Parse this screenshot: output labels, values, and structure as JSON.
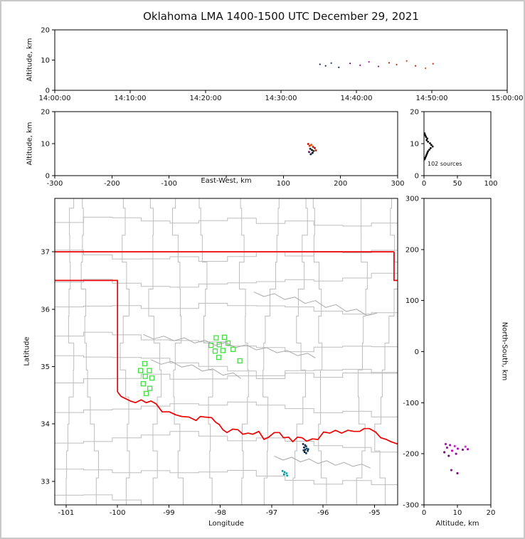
{
  "figure": {
    "title": "Oklahoma LMA 1400-1500 UTC December 29, 2021",
    "background": "#ffffff",
    "outer_border_color": "#c9c9c9",
    "frame_color": "#000000"
  },
  "chart_data": [
    {
      "id": "time_height",
      "type": "scatter",
      "ylabel": "Altitude, km",
      "xlim": [
        0,
        3600
      ],
      "ylim": [
        0,
        20
      ],
      "xticks": [
        {
          "v": 0,
          "l": "14:00:00"
        },
        {
          "v": 600,
          "l": "14:10:00"
        },
        {
          "v": 1200,
          "l": "14:20:00"
        },
        {
          "v": 1800,
          "l": "14:30:00"
        },
        {
          "v": 2400,
          "l": "14:40:00"
        },
        {
          "v": 3000,
          "l": "14:50:00"
        },
        {
          "v": 3600,
          "l": "15:00:00"
        }
      ],
      "yticks": [
        {
          "v": 0,
          "l": "0"
        },
        {
          "v": 10,
          "l": "10"
        },
        {
          "v": 20,
          "l": "20"
        }
      ],
      "marker_size": 1.1,
      "points": [
        [
          2110,
          8.6,
          "#0b2e59"
        ],
        [
          2155,
          8.1,
          "#0b2e59"
        ],
        [
          2200,
          9.0,
          "#123a6b"
        ],
        [
          2260,
          7.6,
          "#0a2547"
        ],
        [
          2350,
          8.9,
          "#5b0b6e"
        ],
        [
          2430,
          8.3,
          "#8a0f8a"
        ],
        [
          2500,
          9.4,
          "#a511a5"
        ],
        [
          2575,
          7.9,
          "#8a0f8a"
        ],
        [
          2660,
          9.1,
          "#b32410"
        ],
        [
          2720,
          8.5,
          "#c23311"
        ],
        [
          2800,
          9.7,
          "#d2400e"
        ],
        [
          2870,
          8.1,
          "#bf1d0d"
        ],
        [
          2950,
          7.3,
          "#e05a10"
        ],
        [
          3010,
          8.8,
          "#c22727"
        ]
      ]
    },
    {
      "id": "ew_height",
      "type": "scatter",
      "xlabel": "East-West, km",
      "ylabel": "Altitude, km",
      "xlim": [
        -300,
        300
      ],
      "ylim": [
        0,
        20
      ],
      "xticks": [
        {
          "v": -300,
          "l": "-300"
        },
        {
          "v": -200,
          "l": "-200"
        },
        {
          "v": -100,
          "l": "-100"
        },
        {
          "v": 0,
          "l": ""
        },
        {
          "v": 100,
          "l": "100"
        },
        {
          "v": 200,
          "l": "200"
        },
        {
          "v": 300,
          "l": "300"
        }
      ],
      "yticks": [
        {
          "v": 0,
          "l": "0"
        },
        {
          "v": 10,
          "l": "10"
        },
        {
          "v": 20,
          "l": "20"
        }
      ],
      "marker_size": 1.5,
      "points": [
        [
          143.5,
          9.9,
          "#c2200d"
        ],
        [
          146,
          9.3,
          "#d23b0e"
        ],
        [
          149,
          9.6,
          "#e0550f"
        ],
        [
          152,
          9.0,
          "#c2200d"
        ],
        [
          155,
          8.6,
          "#b01a0a"
        ],
        [
          147,
          8.4,
          "#2a2a2a"
        ],
        [
          150,
          8.0,
          "#1a1a1a"
        ],
        [
          153,
          7.7,
          "#333333"
        ],
        [
          145,
          7.4,
          "#7a0d7a"
        ],
        [
          151,
          7.1,
          "#151515"
        ],
        [
          148,
          6.7,
          "#0b2e59"
        ],
        [
          157,
          7.9,
          "#c23311"
        ]
      ]
    },
    {
      "id": "alt_histogram",
      "type": "scatter",
      "annotation": "102 sources",
      "xlim": [
        0,
        100
      ],
      "ylim": [
        0,
        20
      ],
      "xticks": [
        {
          "v": 0,
          "l": "0"
        },
        {
          "v": 50,
          "l": "50"
        },
        {
          "v": 100,
          "l": "100"
        }
      ],
      "yticks": [
        {
          "v": 0,
          "l": "0"
        },
        {
          "v": 10,
          "l": "10"
        },
        {
          "v": 20,
          "l": "20"
        }
      ],
      "color": "#000000",
      "marker_size": 1.4,
      "points": [
        [
          1,
          13.2
        ],
        [
          2,
          12.6
        ],
        [
          3,
          12.1
        ],
        [
          5,
          11.6
        ],
        [
          4,
          11.1
        ],
        [
          6,
          10.6
        ],
        [
          9,
          10.1
        ],
        [
          11,
          9.6
        ],
        [
          13,
          9.1
        ],
        [
          10,
          8.6
        ],
        [
          8,
          8.1
        ],
        [
          6,
          7.6
        ],
        [
          5,
          7.1
        ],
        [
          4,
          6.6
        ],
        [
          3,
          6.1
        ],
        [
          2,
          5.6
        ],
        [
          1,
          5.1
        ]
      ]
    },
    {
      "id": "map",
      "type": "scatter",
      "xlabel": "Longitude",
      "ylabel": "Latitude",
      "xlim": [
        -101.22,
        -94.55
      ],
      "ylim": [
        32.59,
        37.93
      ],
      "xticks": [
        {
          "v": -101,
          "l": "-101"
        },
        {
          "v": -100,
          "l": "-100"
        },
        {
          "v": -99,
          "l": "-99"
        },
        {
          "v": -98,
          "l": "-98"
        },
        {
          "v": -97,
          "l": "-97"
        },
        {
          "v": -96,
          "l": "-96"
        },
        {
          "v": -95,
          "l": "-95"
        }
      ],
      "yticks": [
        {
          "v": 33,
          "l": "33"
        },
        {
          "v": 34,
          "l": "34"
        },
        {
          "v": 35,
          "l": "35"
        },
        {
          "v": 36,
          "l": "36"
        },
        {
          "v": 37,
          "l": "37"
        }
      ],
      "county_grid": {
        "color": "#bdbdbd",
        "lon_step": 0.56,
        "lat_step": 0.47
      },
      "rivers": {
        "color": "#a9a9a9",
        "lines": [
          [
            [
              -99.5,
              35.56
            ],
            [
              -99.3,
              35.48
            ],
            [
              -99.1,
              35.53
            ],
            [
              -98.9,
              35.45
            ],
            [
              -98.7,
              35.5
            ],
            [
              -98.5,
              35.41
            ],
            [
              -98.3,
              35.46
            ],
            [
              -98.1,
              35.37
            ],
            [
              -97.9,
              35.42
            ],
            [
              -97.7,
              35.33
            ],
            [
              -97.5,
              35.38
            ],
            [
              -97.3,
              35.29
            ],
            [
              -97.1,
              35.33
            ],
            [
              -96.9,
              35.24
            ],
            [
              -96.7,
              35.28
            ],
            [
              -96.5,
              35.19
            ],
            [
              -96.3,
              35.23
            ],
            [
              -96.15,
              35.15
            ]
          ],
          [
            [
              -97.35,
              36.3
            ],
            [
              -97.15,
              36.22
            ],
            [
              -96.95,
              36.27
            ],
            [
              -96.75,
              36.17
            ],
            [
              -96.55,
              36.21
            ],
            [
              -96.35,
              36.1
            ],
            [
              -96.15,
              36.15
            ],
            [
              -95.95,
              36.03
            ],
            [
              -95.75,
              36.08
            ],
            [
              -95.55,
              35.96
            ],
            [
              -95.35,
              36.0
            ],
            [
              -95.15,
              35.89
            ],
            [
              -94.95,
              35.93
            ]
          ],
          [
            [
              -99.35,
              35.12
            ],
            [
              -99.15,
              35.04
            ],
            [
              -98.95,
              35.09
            ],
            [
              -98.75,
              34.99
            ],
            [
              -98.55,
              35.03
            ],
            [
              -98.35,
              34.92
            ],
            [
              -98.15,
              34.96
            ],
            [
              -97.95,
              34.85
            ],
            [
              -97.75,
              34.89
            ],
            [
              -97.6,
              34.79
            ]
          ],
          [
            [
              -96.95,
              33.44
            ],
            [
              -96.78,
              33.37
            ],
            [
              -96.61,
              33.42
            ],
            [
              -96.44,
              33.34
            ],
            [
              -96.27,
              33.39
            ],
            [
              -96.1,
              33.31
            ],
            [
              -95.93,
              33.36
            ],
            [
              -95.76,
              33.28
            ],
            [
              -95.59,
              33.33
            ],
            [
              -95.42,
              33.26
            ],
            [
              -95.25,
              33.3
            ],
            [
              -95.08,
              33.23
            ]
          ]
        ]
      },
      "state_border": {
        "color": "#ee0000",
        "segments": [
          [
            [
              -101.22,
              37
            ],
            [
              -94.62,
              37
            ]
          ],
          [
            [
              -94.62,
              37
            ],
            [
              -94.62,
              36.5
            ],
            [
              -94.55,
              36.5
            ]
          ],
          [
            [
              -101.22,
              36.5
            ],
            [
              -100.0,
              36.5
            ],
            [
              -100.0,
              34.56
            ]
          ],
          [
            [
              -100.0,
              34.56
            ],
            [
              -99.93,
              34.48
            ],
            [
              -99.84,
              34.44
            ],
            [
              -99.75,
              34.4
            ],
            [
              -99.65,
              34.37
            ],
            [
              -99.54,
              34.42
            ],
            [
              -99.44,
              34.37
            ],
            [
              -99.35,
              34.4
            ],
            [
              -99.25,
              34.35
            ],
            [
              -99.13,
              34.21
            ],
            [
              -98.99,
              34.21
            ],
            [
              -98.87,
              34.16
            ],
            [
              -98.75,
              34.13
            ],
            [
              -98.61,
              34.12
            ],
            [
              -98.47,
              34.06
            ],
            [
              -98.39,
              34.13
            ],
            [
              -98.3,
              34.12
            ],
            [
              -98.17,
              34.11
            ],
            [
              -98.09,
              34.03
            ],
            [
              -98.02,
              33.99
            ],
            [
              -97.95,
              33.9
            ],
            [
              -97.87,
              33.85
            ],
            [
              -97.76,
              33.91
            ],
            [
              -97.66,
              33.9
            ],
            [
              -97.56,
              33.82
            ],
            [
              -97.46,
              33.84
            ],
            [
              -97.37,
              33.82
            ],
            [
              -97.25,
              33.87
            ],
            [
              -97.15,
              33.73
            ],
            [
              -97.06,
              33.77
            ],
            [
              -96.95,
              33.85
            ],
            [
              -96.85,
              33.85
            ],
            [
              -96.77,
              33.76
            ],
            [
              -96.67,
              33.77
            ],
            [
              -96.59,
              33.69
            ],
            [
              -96.5,
              33.77
            ],
            [
              -96.41,
              33.76
            ],
            [
              -96.32,
              33.7
            ],
            [
              -96.21,
              33.74
            ],
            [
              -96.1,
              33.73
            ],
            [
              -95.99,
              33.86
            ],
            [
              -95.87,
              33.84
            ],
            [
              -95.76,
              33.89
            ],
            [
              -95.64,
              33.84
            ],
            [
              -95.52,
              33.89
            ],
            [
              -95.4,
              33.87
            ],
            [
              -95.29,
              33.87
            ],
            [
              -95.2,
              33.92
            ],
            [
              -95.1,
              33.92
            ],
            [
              -94.98,
              33.86
            ],
            [
              -94.88,
              33.76
            ],
            [
              -94.77,
              33.73
            ],
            [
              -94.68,
              33.69
            ],
            [
              -94.55,
              33.65
            ]
          ]
        ]
      },
      "stations": {
        "marker": "open-square",
        "color": "#44dd44",
        "points": [
          [
            -98.08,
            35.5
          ],
          [
            -97.92,
            35.51
          ],
          [
            -98.18,
            35.37
          ],
          [
            -98.02,
            35.38
          ],
          [
            -97.85,
            35.41
          ],
          [
            -98.1,
            35.27
          ],
          [
            -97.95,
            35.28
          ],
          [
            -97.75,
            35.3
          ],
          [
            -98.03,
            35.16
          ],
          [
            -97.62,
            35.1
          ],
          [
            -99.47,
            35.05
          ],
          [
            -99.55,
            34.93
          ],
          [
            -99.38,
            34.93
          ],
          [
            -99.46,
            34.83
          ],
          [
            -99.33,
            34.8
          ],
          [
            -99.5,
            34.7
          ],
          [
            -99.37,
            34.62
          ],
          [
            -99.44,
            34.53
          ]
        ]
      },
      "sources_marker_size": 2.6,
      "sources": [
        [
          -96.39,
          33.65,
          "#0d2b4e"
        ],
        [
          -96.35,
          33.63,
          "#0a1f3c"
        ],
        [
          -96.33,
          33.61,
          "#0e3a5e"
        ],
        [
          -96.37,
          33.59,
          "#071830"
        ],
        [
          -96.32,
          33.57,
          "#104a6e"
        ],
        [
          -96.35,
          33.55,
          "#0a2a44"
        ],
        [
          -96.3,
          33.53,
          "#0d3550"
        ],
        [
          -96.36,
          33.51,
          "#061426"
        ],
        [
          -96.33,
          33.49,
          "#0b2e59"
        ],
        [
          -96.29,
          33.56,
          "#0f4066"
        ],
        [
          -96.38,
          33.54,
          "#123a6b"
        ],
        [
          -96.79,
          33.18,
          "#00a0a0"
        ],
        [
          -96.75,
          33.16,
          "#009898"
        ],
        [
          -96.71,
          33.14,
          "#00adad"
        ],
        [
          -96.76,
          33.12,
          "#008a8a"
        ],
        [
          -96.7,
          33.1,
          "#00a0a0"
        ]
      ]
    },
    {
      "id": "ns_height",
      "type": "scatter",
      "xlabel": "Altitude, km",
      "ylabel_right": "North-South, km",
      "xlim": [
        0,
        20
      ],
      "ylim": [
        -300,
        300
      ],
      "xticks": [
        {
          "v": 0,
          "l": "0"
        },
        {
          "v": 10,
          "l": "10"
        },
        {
          "v": 20,
          "l": "20"
        }
      ],
      "yticks": [
        {
          "v": 300,
          "l": "300"
        },
        {
          "v": 200,
          "l": "200"
        },
        {
          "v": 100,
          "l": "100"
        },
        {
          "v": 0,
          "l": "0"
        },
        {
          "v": -100,
          "l": "-100"
        },
        {
          "v": -200,
          "l": "-200"
        },
        {
          "v": -300,
          "l": "-300"
        }
      ],
      "marker_size": 1.6,
      "points": [
        [
          6.5,
          -181,
          "#c211c2"
        ],
        [
          7.8,
          -183,
          "#b00fb0"
        ],
        [
          9.2,
          -185,
          "#c92fc9"
        ],
        [
          6.9,
          -188,
          "#a50da5"
        ],
        [
          10.1,
          -190,
          "#c211c2"
        ],
        [
          11.6,
          -192,
          "#8f0b8f"
        ],
        [
          8.4,
          -194,
          "#c211c2"
        ],
        [
          6.1,
          -197,
          "#7a0d7a"
        ],
        [
          12.4,
          -186,
          "#d23bd2"
        ],
        [
          13.1,
          -191,
          "#b00fb0"
        ],
        [
          9.6,
          -200,
          "#8f0b8f"
        ],
        [
          7.4,
          -204,
          "#6e0a6e"
        ],
        [
          8.2,
          -232,
          "#a50da5"
        ],
        [
          10.0,
          -238,
          "#831083"
        ]
      ]
    }
  ]
}
